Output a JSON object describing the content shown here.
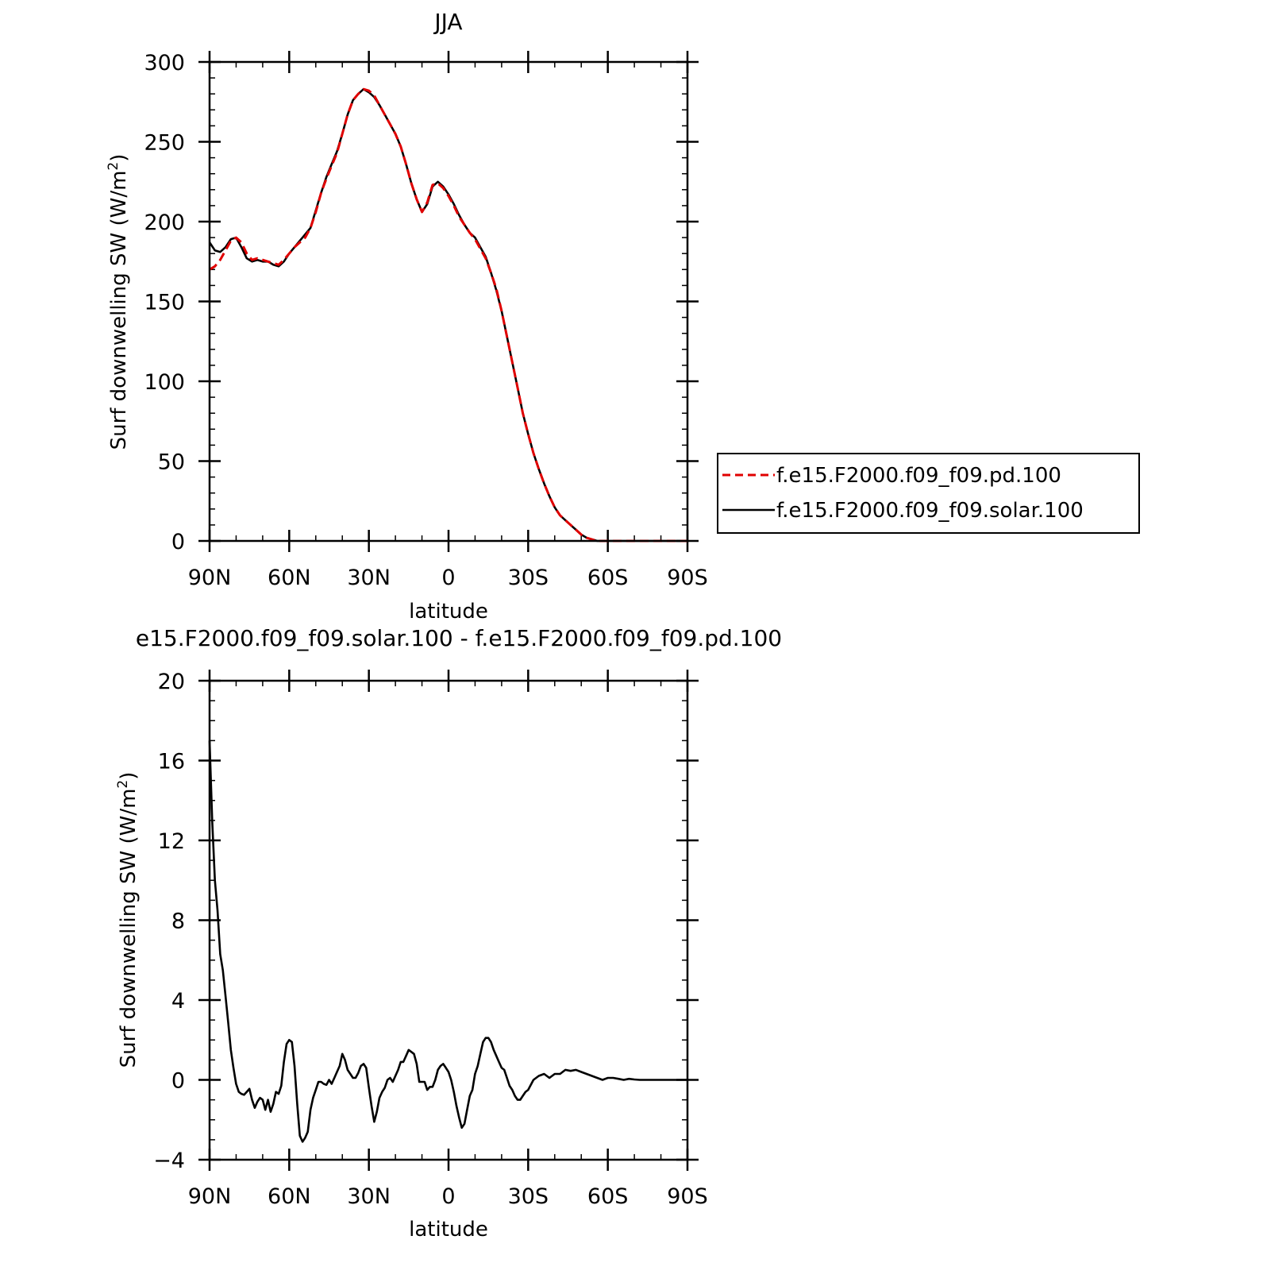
{
  "chart_data": [
    {
      "type": "line",
      "title": "JJA",
      "xlabel": "latitude",
      "ylabel": "Surf downwelling SW (W/m²)",
      "ylabel_main": "Surf downwelling SW (W/m",
      "ylabel_sup": "2",
      "ylabel_end": ")",
      "xlim": [
        90,
        -90
      ],
      "ylim": [
        0,
        300
      ],
      "x_ticks": [
        90,
        60,
        30,
        0,
        -30,
        -60,
        -90
      ],
      "x_tick_labels": [
        "90N",
        "60N",
        "30N",
        "0",
        "30S",
        "60S",
        "90S"
      ],
      "y_ticks": [
        0,
        50,
        100,
        150,
        200,
        250,
        300
      ],
      "y_tick_labels": [
        "0",
        "50",
        "100",
        "150",
        "200",
        "250",
        "300"
      ],
      "y_minor_step": 10,
      "x_minor_step": 10,
      "legend_position": "right",
      "series": [
        {
          "name": "f.e15.F2000.f09_f09.pd.100",
          "color": "#e00000",
          "dash": "dashed",
          "x": [
            90,
            88,
            86,
            84,
            82,
            80,
            78,
            76,
            74,
            72,
            70,
            68,
            66,
            64,
            62,
            60,
            58,
            56,
            54,
            52,
            50,
            48,
            46,
            44,
            42,
            40,
            38,
            36,
            34,
            32,
            30,
            28,
            26,
            24,
            22,
            20,
            18,
            16,
            14,
            12,
            10,
            8,
            6,
            4,
            2,
            0,
            -2,
            -4,
            -6,
            -8,
            -10,
            -12,
            -14,
            -16,
            -18,
            -20,
            -22,
            -24,
            -26,
            -28,
            -30,
            -32,
            -34,
            -36,
            -38,
            -40,
            -42,
            -44,
            -46,
            -48,
            -50,
            -52,
            -54,
            -56,
            -58,
            -60,
            -62,
            -64,
            -66,
            -68,
            -70,
            -72,
            -74,
            -76,
            -78,
            -80,
            -82,
            -84,
            -86,
            -88,
            -90
          ],
          "y": [
            170,
            172,
            176,
            182,
            188,
            190,
            187,
            180,
            176,
            177,
            176,
            175,
            174,
            173,
            176,
            180,
            184,
            187,
            190,
            196,
            206,
            218,
            227,
            235,
            243,
            255,
            267,
            276,
            280,
            283,
            282,
            279,
            273,
            267,
            261,
            255,
            247,
            236,
            224,
            214,
            206,
            212,
            223,
            224,
            221,
            216,
            210,
            203,
            198,
            193,
            189,
            183,
            177,
            168,
            158,
            144,
            128,
            112,
            96,
            80,
            67,
            55,
            45,
            36,
            28,
            21,
            16,
            13,
            10,
            7,
            4,
            2,
            1,
            0,
            0,
            0,
            0,
            0,
            0,
            0,
            0,
            0,
            0,
            0,
            0,
            0,
            0,
            0,
            0,
            0,
            0
          ]
        },
        {
          "name": "f.e15.F2000.f09_f09.solar.100",
          "color": "#000000",
          "dash": "solid",
          "x": [
            90,
            88,
            86,
            84,
            82,
            80,
            78,
            76,
            74,
            72,
            70,
            68,
            66,
            64,
            62,
            60,
            58,
            56,
            54,
            52,
            50,
            48,
            46,
            44,
            42,
            40,
            38,
            36,
            34,
            32,
            30,
            28,
            26,
            24,
            22,
            20,
            18,
            16,
            14,
            12,
            10,
            8,
            6,
            4,
            2,
            0,
            -2,
            -4,
            -6,
            -8,
            -10,
            -12,
            -14,
            -16,
            -18,
            -20,
            -22,
            -24,
            -26,
            -28,
            -30,
            -32,
            -34,
            -36,
            -38,
            -40,
            -42,
            -44,
            -46,
            -48,
            -50,
            -52,
            -54,
            -56,
            -58,
            -60,
            -62,
            -64,
            -66,
            -68,
            -70,
            -72,
            -74,
            -76,
            -78,
            -80,
            -82,
            -84,
            -86,
            -88,
            -90
          ],
          "y": [
            187,
            182,
            181,
            184,
            189,
            190,
            184,
            177,
            175,
            176,
            175,
            175,
            173,
            172,
            175,
            180,
            184,
            188,
            192,
            196,
            207,
            218,
            228,
            236,
            244,
            255,
            267,
            276,
            280,
            283,
            281,
            278,
            273,
            267,
            261,
            255,
            247,
            236,
            224,
            214,
            206,
            211,
            222,
            225,
            222,
            217,
            211,
            204,
            198,
            193,
            190,
            184,
            178,
            168,
            157,
            144,
            128,
            112,
            96,
            80,
            67,
            55,
            45,
            36,
            28,
            21,
            16,
            13,
            10,
            7,
            4,
            2,
            1,
            0,
            0,
            0,
            0,
            0,
            0,
            0,
            0,
            0,
            0,
            0,
            0,
            0,
            0,
            0,
            0,
            0,
            0
          ]
        }
      ]
    },
    {
      "type": "line",
      "title": "e15.F2000.f09_f09.solar.100 - f.e15.F2000.f09_f09.pd.100",
      "xlabel": "latitude",
      "ylabel": "Surf downwelling SW (W/m²)",
      "ylabel_main": "Surf downwelling SW (W/m",
      "ylabel_sup": "2",
      "ylabel_end": ")",
      "xlim": [
        90,
        -90
      ],
      "ylim": [
        -4,
        20
      ],
      "x_ticks": [
        90,
        60,
        30,
        0,
        -30,
        -60,
        -90
      ],
      "x_tick_labels": [
        "90N",
        "60N",
        "30N",
        "0",
        "30S",
        "60S",
        "90S"
      ],
      "y_ticks": [
        -4,
        0,
        4,
        8,
        12,
        16,
        20
      ],
      "y_tick_labels": [
        "−4",
        "0",
        "4",
        "8",
        "12",
        "16",
        "20"
      ],
      "y_minor_step": 1,
      "x_minor_step": 10,
      "series": [
        {
          "name": "",
          "color": "#000000",
          "dash": "solid",
          "x": [
            90,
            89,
            88,
            87,
            86,
            85,
            84,
            83,
            82,
            81,
            80,
            79,
            78,
            77,
            76,
            75,
            74,
            73,
            72,
            71,
            70,
            69,
            68,
            67,
            66,
            65,
            64,
            63,
            62,
            61,
            60,
            59,
            58,
            57,
            56,
            55,
            54,
            53,
            52,
            51,
            50,
            49,
            48,
            47,
            46,
            45,
            44,
            43,
            42,
            41,
            40,
            39,
            38,
            37,
            36,
            35,
            34,
            33,
            32,
            31,
            30,
            29,
            28,
            27,
            26,
            25,
            24,
            23,
            22,
            21,
            20,
            19,
            18,
            17,
            16,
            15,
            14,
            13,
            12,
            11,
            10,
            9,
            8,
            7,
            6,
            5,
            4,
            3,
            2,
            1,
            0,
            -1,
            -2,
            -3,
            -4,
            -5,
            -6,
            -7,
            -8,
            -9,
            -10,
            -11,
            -12,
            -13,
            -14,
            -15,
            -16,
            -17,
            -18,
            -19,
            -20,
            -21,
            -22,
            -23,
            -24,
            -25,
            -26,
            -27,
            -28,
            -29,
            -30,
            -32,
            -34,
            -36,
            -38,
            -40,
            -42,
            -44,
            -46,
            -48,
            -50,
            -52,
            -54,
            -56,
            -58,
            -60,
            -62,
            -64,
            -66,
            -68,
            -70,
            -72,
            -74,
            -76,
            -78,
            -80,
            -82,
            -84,
            -86,
            -88,
            -90
          ],
          "y": [
            17,
            13,
            10,
            8.5,
            6.3,
            5.5,
            4.2,
            2.9,
            1.5,
            0.6,
            -0.2,
            -0.6,
            -0.7,
            -0.75,
            -0.6,
            -0.45,
            -1,
            -1.4,
            -1.1,
            -0.9,
            -1,
            -1.5,
            -1,
            -1.6,
            -1.2,
            -0.6,
            -0.7,
            -0.3,
            0.9,
            1.8,
            2.0,
            1.9,
            0.7,
            -1.2,
            -2.8,
            -3.1,
            -2.9,
            -2.6,
            -1.5,
            -0.9,
            -0.5,
            -0.1,
            -0.1,
            -0.2,
            -0.25,
            0,
            -0.2,
            0.1,
            0.4,
            0.7,
            1.3,
            1.0,
            0.5,
            0.3,
            0.1,
            0.1,
            0.35,
            0.7,
            0.8,
            0.6,
            -0.4,
            -1.3,
            -2.1,
            -1.6,
            -0.9,
            -0.6,
            -0.4,
            0,
            0.1,
            -0.1,
            0.2,
            0.5,
            0.9,
            0.9,
            1.2,
            1.5,
            1.4,
            1.3,
            0.8,
            -0.1,
            -0.1,
            -0.1,
            -0.5,
            -0.35,
            -0.35,
            0,
            0.5,
            0.7,
            0.8,
            0.6,
            0.4,
            0,
            -0.6,
            -1.3,
            -1.9,
            -2.4,
            -2.2,
            -1.5,
            -0.8,
            -0.5,
            0.3,
            0.7,
            1.3,
            1.9,
            2.1,
            2.1,
            1.9,
            1.5,
            1.2,
            0.9,
            0.6,
            0.5,
            0.1,
            -0.3,
            -0.5,
            -0.8,
            -1,
            -1,
            -0.8,
            -0.6,
            -0.5,
            0,
            0.2,
            0.3,
            0.1,
            0.3,
            0.3,
            0.5,
            0.45,
            0.5,
            0.4,
            0.3,
            0.2,
            0.1,
            0,
            0.1,
            0.1,
            0.05,
            0,
            0.05,
            0.02,
            0,
            0,
            0,
            0,
            0,
            0,
            0,
            0,
            0,
            0
          ]
        }
      ]
    }
  ]
}
